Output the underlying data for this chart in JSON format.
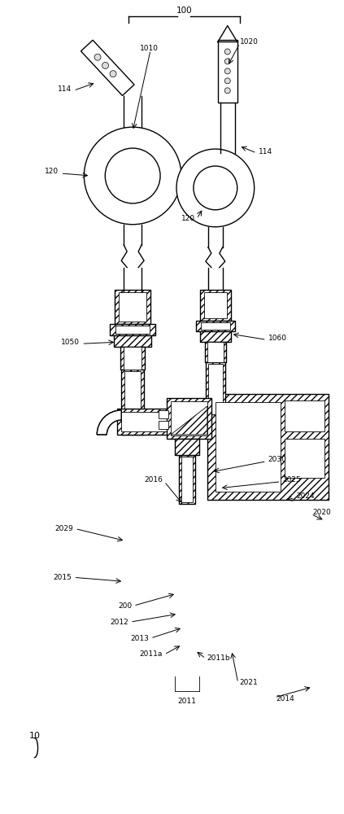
{
  "bg_color": "#ffffff",
  "lw": 1.0,
  "tlw": 0.6,
  "fs": 6.5,
  "hatch": "////",
  "fig_w": 4.23,
  "fig_h": 10.0,
  "dpi": 100
}
